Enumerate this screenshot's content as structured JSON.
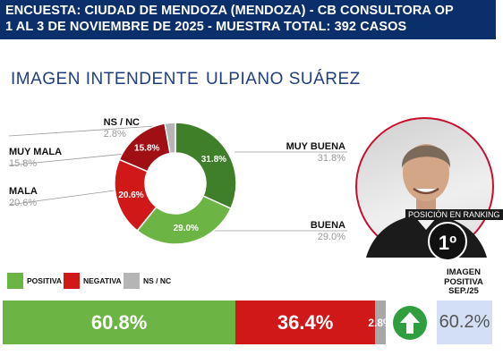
{
  "header": {
    "line1": "ENCUESTA: CIUDAD DE MENDOZA (MENDOZA) - CB CONSULTORA OP",
    "line2": "1 AL 3 DE NOVIEMBRE DE 2025 - MUESTRA TOTAL: 392 CASOS"
  },
  "titles": {
    "left": "IMAGEN INTENDENTE",
    "right": "ULPIANO SUÁREZ"
  },
  "chart_data": [
    {
      "type": "pie",
      "title": "",
      "categories": [
        "MUY BUENA",
        "BUENA",
        "MALA",
        "MUY MALA",
        "NS / NC"
      ],
      "values": [
        31.8,
        29.0,
        20.6,
        15.8,
        2.8
      ],
      "labels": [
        "31.8%",
        "29.0%",
        "20.6%",
        "15.8%",
        "2.8%"
      ],
      "colors": [
        "#3f7f2a",
        "#6cb443",
        "#d01818",
        "#a00f14",
        "#b5b5b5"
      ],
      "donut": true
    },
    {
      "type": "bar",
      "orientation": "horizontal-stacked",
      "title": "",
      "categories": [
        "POSITIVA",
        "NEGATIVA",
        "NS / NC"
      ],
      "values": [
        60.8,
        36.4,
        2.8
      ],
      "labels": [
        "60.8%",
        "36.4%",
        "2.8%"
      ],
      "colors": [
        "#6cb443",
        "#d01818",
        "#a8a8a8"
      ]
    }
  ],
  "ranking": {
    "label": "POSICIÓN EN RANKING",
    "value": "1º"
  },
  "previous": {
    "title": "IMAGEN POSITIVA SEP./25",
    "value": "60.2%",
    "trend": "up-arrow-icon"
  }
}
